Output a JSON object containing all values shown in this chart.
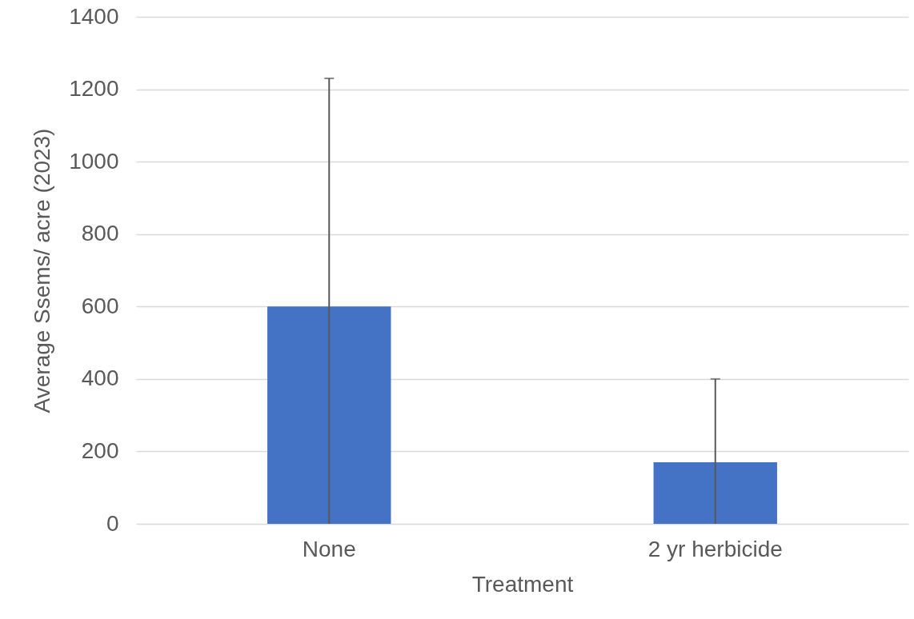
{
  "chart_data": {
    "type": "bar",
    "xlabel": "Treatment",
    "ylabel": "Average Ssems/ acre (2023)",
    "categories": [
      "None",
      "2 yr herbicide"
    ],
    "values": [
      600,
      170
    ],
    "errors": [
      [
        0,
        1230
      ],
      [
        0,
        400
      ]
    ],
    "color": "#4472c4",
    "ylim": [
      0,
      1400
    ],
    "yticks": [
      0,
      200,
      400,
      600,
      800,
      1000,
      1200,
      1400
    ],
    "grid": "y"
  }
}
